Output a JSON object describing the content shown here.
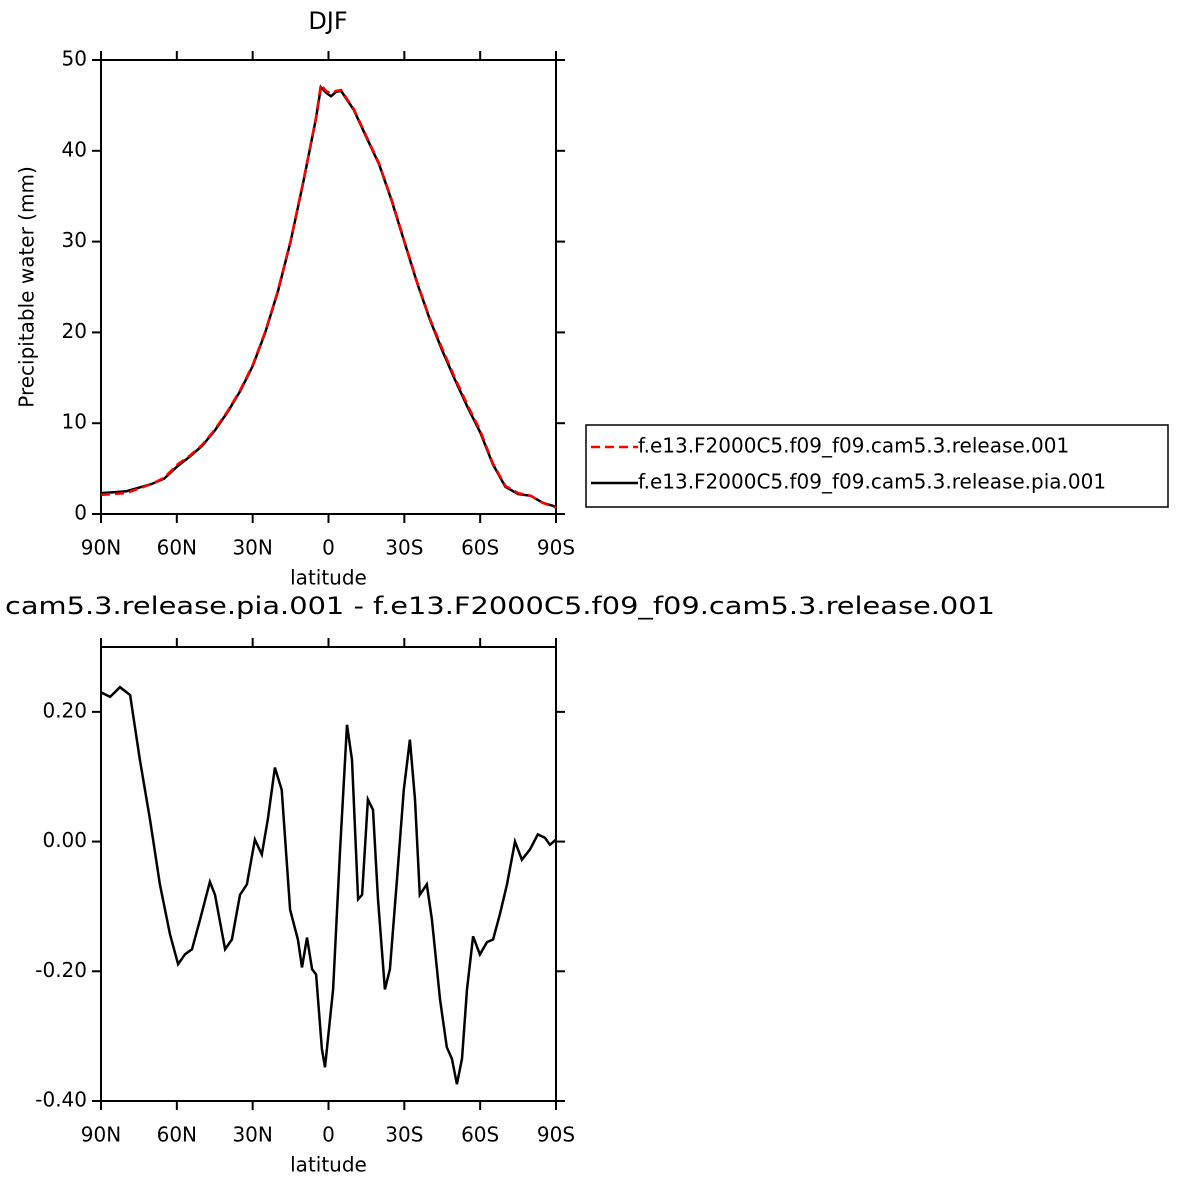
{
  "chart_data": [
    {
      "type": "line",
      "title": "DJF",
      "ylabel": "Precipitable water (mm)",
      "xlabel": "latitude",
      "xlim": [
        90,
        -90
      ],
      "ylim": [
        0,
        50
      ],
      "xticks": [
        {
          "value": 90,
          "label": "90N"
        },
        {
          "value": 60,
          "label": "60N"
        },
        {
          "value": 30,
          "label": "30N"
        },
        0,
        {
          "value": -30,
          "label": "30S"
        },
        {
          "value": -60,
          "label": "60S"
        },
        {
          "value": -90,
          "label": "90S"
        }
      ],
      "yticks": [
        0,
        10,
        20,
        30,
        40,
        50
      ],
      "legend": "right",
      "x": [
        90,
        85,
        80,
        75,
        70,
        65,
        60,
        55,
        50,
        45,
        40,
        35,
        30,
        25,
        20,
        15,
        10,
        5,
        3,
        1,
        -1,
        -3,
        -5,
        -10,
        -15,
        -20,
        -25,
        -30,
        -35,
        -40,
        -45,
        -50,
        -55,
        -60,
        -65,
        -70,
        -75,
        -80,
        -85,
        -90
      ],
      "series": [
        {
          "name": "f.e13.F2000C5.f09_f09.cam5.3.release.001",
          "color": "#ff0000",
          "dash": true,
          "values": [
            2.1,
            2.2,
            2.3,
            2.8,
            3.3,
            4.0,
            5.4,
            6.4,
            7.6,
            9.3,
            11.3,
            13.6,
            16.4,
            20.1,
            24.6,
            30.1,
            36.6,
            43.6,
            47.3,
            46.6,
            46.3,
            46.6,
            46.7,
            44.6,
            41.6,
            38.6,
            34.6,
            30.1,
            25.6,
            21.6,
            18.2,
            15.0,
            12.0,
            9.2,
            5.6,
            3.1,
            2.3,
            2.0,
            1.2,
            0.7
          ]
        },
        {
          "name": "f.e13.F2000C5.f09_f09.cam5.3.release.pia.001",
          "color": "#000000",
          "dash": false,
          "values": [
            2.3,
            2.4,
            2.5,
            2.9,
            3.3,
            3.9,
            5.2,
            6.3,
            7.5,
            9.2,
            11.2,
            13.5,
            16.3,
            20.0,
            24.5,
            30.0,
            36.5,
            43.5,
            47.0,
            46.4,
            46.0,
            46.5,
            46.6,
            44.5,
            41.5,
            38.5,
            34.5,
            30.0,
            25.5,
            21.5,
            18.0,
            14.8,
            11.8,
            9.0,
            5.5,
            3.0,
            2.2,
            2.0,
            1.2,
            0.8
          ]
        }
      ]
    },
    {
      "type": "line",
      "title": "cam5.3.release.pia.001 - f.e13.F2000C5.f09_f09.cam5.3.release.001",
      "xlabel": "latitude",
      "xlim": [
        90,
        -90
      ],
      "ylim": [
        -0.4,
        0.3
      ],
      "xticks": [
        {
          "value": 90,
          "label": "90N"
        },
        {
          "value": 60,
          "label": "60N"
        },
        {
          "value": 30,
          "label": "30N"
        },
        0,
        {
          "value": -30,
          "label": "30S"
        },
        {
          "value": -60,
          "label": "60S"
        },
        {
          "value": -90,
          "label": "90S"
        }
      ],
      "yticks": [
        {
          "value": 0.2,
          "label": "0.20"
        },
        {
          "value": 0,
          "label": "0.00"
        },
        {
          "value": -0.2,
          "label": "-0.20"
        },
        {
          "value": -0.4,
          "label": "-0.40"
        }
      ],
      "x": [
        90,
        86.4,
        82.5,
        78.5,
        74.6,
        70.6,
        66.7,
        62.7,
        59.5,
        56.8,
        54,
        50.8,
        46.9,
        44.9,
        40.9,
        38.2,
        35,
        32.3,
        29.1,
        26.4,
        24,
        21.2,
        18.5,
        15.2,
        12.1,
        10.5,
        8.5,
        6.5,
        4.9,
        2.6,
        1.4,
        -1.8,
        -4.6,
        -7.3,
        -9.3,
        -11.7,
        -13.3,
        -15.6,
        -17.6,
        -19.6,
        -22.3,
        -24.3,
        -27.1,
        -29.8,
        -32.2,
        -34.2,
        -36.1,
        -38.9,
        -40.9,
        -44.1,
        -46.8,
        -48.8,
        -50.8,
        -52.8,
        -54.8,
        -57.2,
        -59.9,
        -62.7,
        -65.1,
        -67.8,
        -70.6,
        -73.8,
        -76.5,
        -79.7,
        -82.8,
        -85.6,
        -87.6,
        -90
      ],
      "series": [
        {
          "color": "#000000",
          "dash": false,
          "values": [
            0.23,
            0.223,
            0.238,
            0.226,
            0.126,
            0.034,
            -0.066,
            -0.143,
            -0.189,
            -0.174,
            -0.166,
            -0.12,
            -0.062,
            -0.082,
            -0.166,
            -0.151,
            -0.082,
            -0.066,
            0.003,
            -0.02,
            0.034,
            0.114,
            0.08,
            -0.105,
            -0.151,
            -0.194,
            -0.148,
            -0.197,
            -0.205,
            -0.32,
            -0.348,
            -0.228,
            -0.012,
            0.18,
            0.126,
            -0.089,
            -0.082,
            0.065,
            0.049,
            -0.089,
            -0.228,
            -0.197,
            -0.058,
            0.08,
            0.157,
            0.065,
            -0.082,
            -0.066,
            -0.12,
            -0.243,
            -0.317,
            -0.335,
            -0.374,
            -0.335,
            -0.228,
            -0.146,
            -0.174,
            -0.155,
            -0.151,
            -0.112,
            -0.066,
            0,
            -0.028,
            -0.012,
            0.011,
            0.006,
            -0.005,
            0.003
          ]
        }
      ]
    }
  ]
}
